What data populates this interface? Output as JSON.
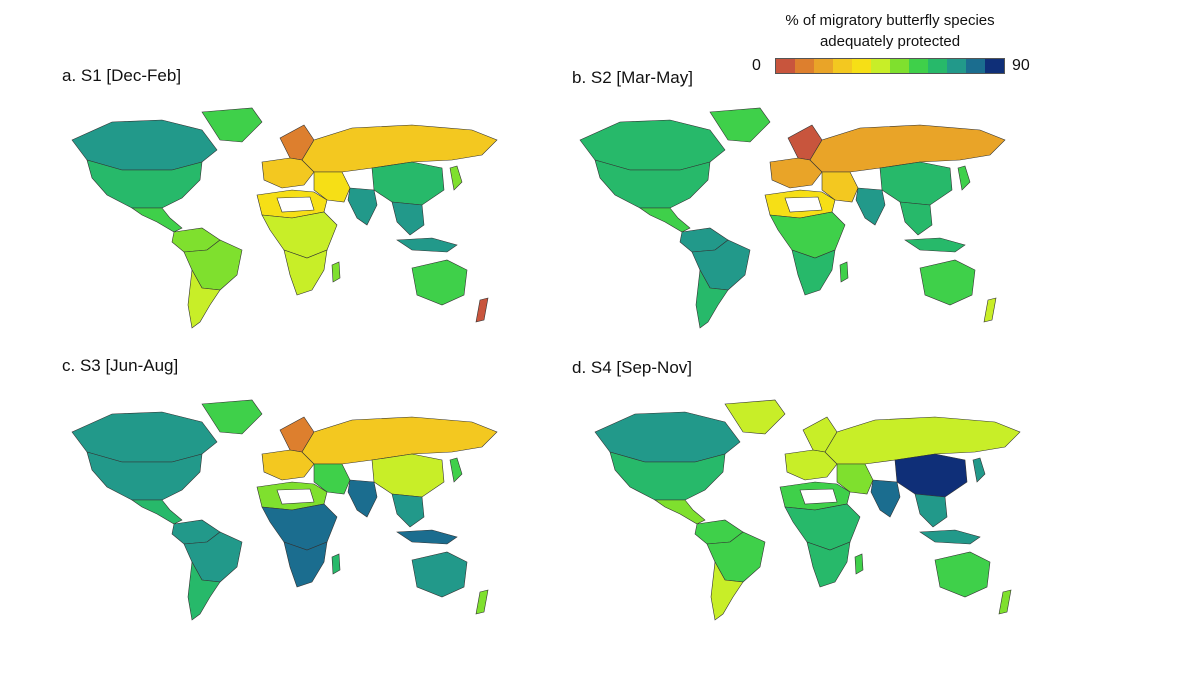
{
  "legend": {
    "title_line1": "% of migratory butterfly species",
    "title_line2": "adequately protected",
    "min_label": "0",
    "max_label": "90",
    "colors": [
      "#c8553d",
      "#dd7f2e",
      "#e9a428",
      "#f3c820",
      "#f6df16",
      "#c8ee28",
      "#7fe02e",
      "#3fd04a",
      "#27b96a",
      "#22998a",
      "#1b6d8f",
      "#0f2f78"
    ]
  },
  "panels": [
    {
      "label": "a. S1 [Dec-Feb]",
      "regions": {
        "north_america": "#27b96a",
        "canada": "#22998a",
        "greenland": "#3fd04a",
        "central_america": "#3fd04a",
        "south_america_north": "#7fe02e",
        "brazil": "#7fe02e",
        "south_america_south": "#c8ee28",
        "europe_west": "#f3c820",
        "scandinavia": "#dd7f2e",
        "russia": "#f3c820",
        "middle_east": "#f6df16",
        "north_africa": "#f6df16",
        "sahara_gap": "#ffffff",
        "central_africa": "#c8ee28",
        "southern_africa": "#c8ee28",
        "madagascar": "#7fe02e",
        "india": "#22998a",
        "china": "#27b96a",
        "southeast_asia": "#22998a",
        "indonesia": "#22998a",
        "australia": "#3fd04a",
        "new_zealand": "#c8553d",
        "japan": "#7fe02e"
      }
    },
    {
      "label": "b. S2 [Mar-May]",
      "regions": {
        "north_america": "#27b96a",
        "canada": "#27b96a",
        "greenland": "#3fd04a",
        "central_america": "#3fd04a",
        "south_america_north": "#22998a",
        "brazil": "#22998a",
        "south_america_south": "#27b96a",
        "europe_west": "#e9a428",
        "scandinavia": "#c8553d",
        "russia": "#e9a428",
        "middle_east": "#f3c820",
        "north_africa": "#f6df16",
        "sahara_gap": "#ffffff",
        "central_africa": "#3fd04a",
        "southern_africa": "#27b96a",
        "madagascar": "#3fd04a",
        "india": "#22998a",
        "china": "#27b96a",
        "southeast_asia": "#27b96a",
        "indonesia": "#27b96a",
        "australia": "#3fd04a",
        "new_zealand": "#c8ee28",
        "japan": "#3fd04a"
      }
    },
    {
      "label": "c. S3 [Jun-Aug]",
      "regions": {
        "north_america": "#22998a",
        "canada": "#22998a",
        "greenland": "#3fd04a",
        "central_america": "#27b96a",
        "south_america_north": "#22998a",
        "brazil": "#22998a",
        "south_america_south": "#27b96a",
        "europe_west": "#f3c820",
        "scandinavia": "#dd7f2e",
        "russia": "#f3c820",
        "middle_east": "#3fd04a",
        "north_africa": "#7fe02e",
        "sahara_gap": "#ffffff",
        "central_africa": "#1b6d8f",
        "southern_africa": "#1b6d8f",
        "madagascar": "#27b96a",
        "india": "#1b6d8f",
        "china": "#c8ee28",
        "southeast_asia": "#22998a",
        "indonesia": "#1b6d8f",
        "australia": "#22998a",
        "new_zealand": "#7fe02e",
        "japan": "#3fd04a"
      }
    },
    {
      "label": "d. S4 [Sep-Nov]",
      "regions": {
        "north_america": "#27b96a",
        "canada": "#22998a",
        "greenland": "#c8ee28",
        "central_america": "#7fe02e",
        "south_america_north": "#3fd04a",
        "brazil": "#3fd04a",
        "south_america_south": "#c8ee28",
        "europe_west": "#c8ee28",
        "scandinavia": "#c8ee28",
        "russia": "#c8ee28",
        "middle_east": "#7fe02e",
        "north_africa": "#3fd04a",
        "sahara_gap": "#ffffff",
        "central_africa": "#27b96a",
        "southern_africa": "#27b96a",
        "madagascar": "#3fd04a",
        "india": "#1b6d8f",
        "china": "#0f2f78",
        "southeast_asia": "#22998a",
        "indonesia": "#22998a",
        "australia": "#3fd04a",
        "new_zealand": "#7fe02e",
        "japan": "#22998a"
      }
    }
  ]
}
